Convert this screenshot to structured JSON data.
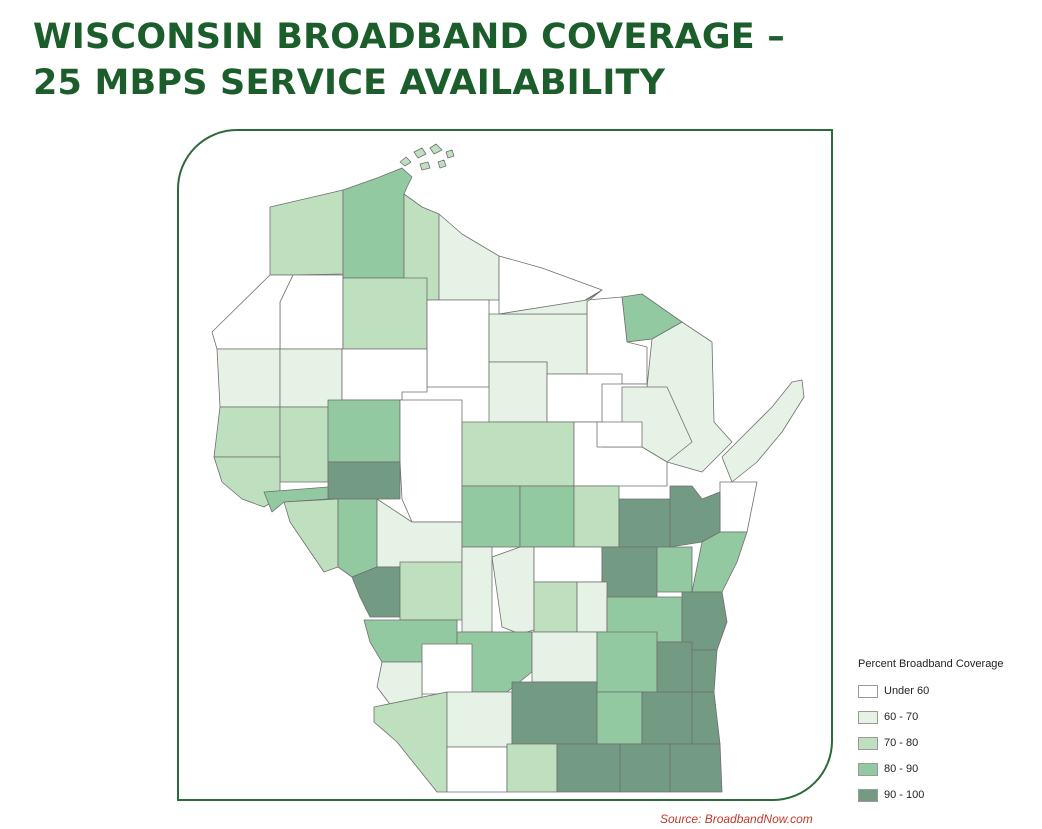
{
  "title": {
    "line1": "WISCONSIN BROADBAND COVERAGE –",
    "line2": "25 MBPS SERVICE AVAILABILITY"
  },
  "legend": {
    "title": "Percent Broadband Coverage",
    "items": [
      {
        "label": "Under 60",
        "color": "#ffffff"
      },
      {
        "label": "60 - 70",
        "color": "#e5f2e5"
      },
      {
        "label": "70 - 80",
        "color": "#bfe0bf"
      },
      {
        "label": "80 - 90",
        "color": "#92c9a1"
      },
      {
        "label": "90 - 100",
        "color": "#739b84"
      }
    ]
  },
  "source": "Source: BroadbandNow.com"
}
